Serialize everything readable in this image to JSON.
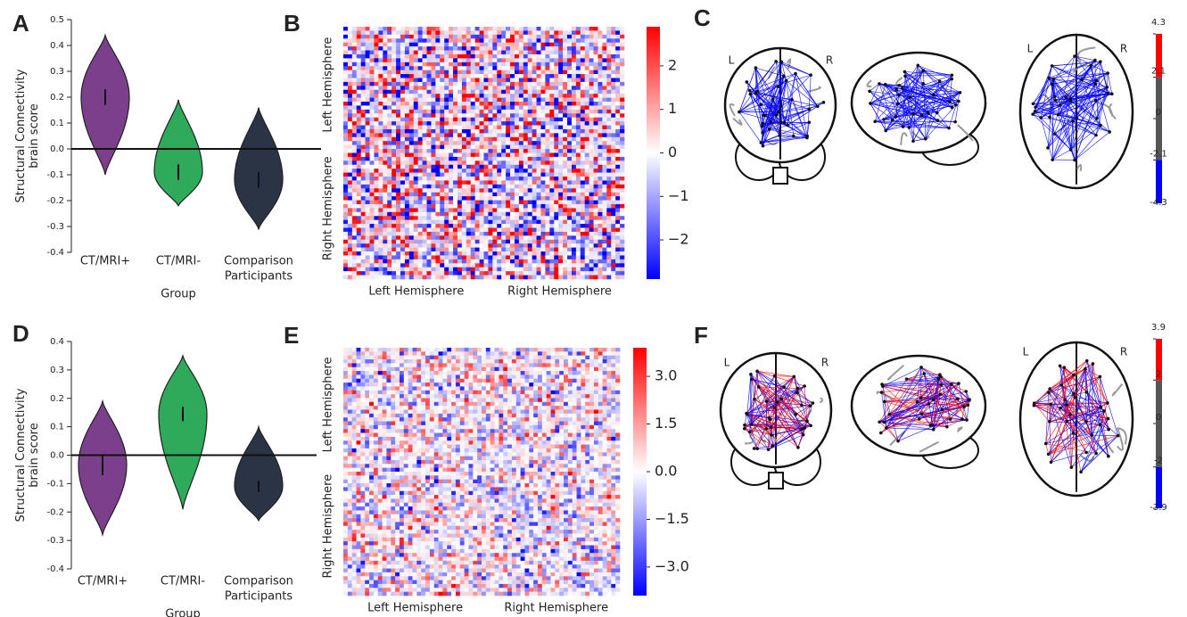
{
  "chart_data": [
    {
      "type": "violin",
      "panel": "A",
      "ylabel": [
        "Structural Connectivity",
        "brain score"
      ],
      "xlabel": "Group",
      "categories": [
        [
          "CT/MRI+"
        ],
        [
          "CT/MRI-"
        ],
        [
          "Comparison",
          "Participants"
        ]
      ],
      "colors": [
        "#7b3f8c",
        "#2eaa5a",
        "#2b3444"
      ],
      "max": [
        0.44,
        0.19,
        0.16
      ],
      "min": [
        -0.1,
        -0.22,
        -0.31
      ],
      "q3": [
        0.23,
        -0.06,
        -0.09
      ],
      "q1": [
        0.17,
        -0.12,
        -0.15
      ],
      "ylim": [
        -0.4,
        0.5
      ],
      "yticks": [
        0.5,
        0.4,
        0.3,
        0.2,
        0.1,
        {
          "value": 0,
          "label": "0.0"
        },
        -0.1,
        -0.2,
        -0.3,
        -0.4
      ]
    },
    {
      "type": "heatmap",
      "panel": "B",
      "xlabels": [
        "Left Hemisphere",
        "Right Hemisphere"
      ],
      "ylabels": [
        "Left Hemisphere",
        "Right Hemisphere"
      ],
      "colors": [
        "#0000ff",
        "#ffffff",
        "#ff0000"
      ],
      "ylim": [
        -2.9,
        2.9
      ],
      "yticks": [
        2,
        1,
        0,
        {
          "value": -1,
          "label": "−1"
        },
        {
          "value": -2,
          "label": "−2"
        }
      ]
    },
    {
      "type": "connectome",
      "panel": "C",
      "hemisphere_labels": [
        "L",
        "R"
      ],
      "colors": [
        "#0000ff",
        "#555555",
        "#ff0000"
      ],
      "ylim": [
        -4.3,
        4.3
      ],
      "yticks": [
        -4.3,
        -2.1,
        0,
        2.1,
        4.3
      ]
    },
    {
      "type": "violin",
      "panel": "D",
      "ylabel": [
        "Structural Connectivity",
        "brain score"
      ],
      "xlabel": "Group",
      "categories": [
        [
          "CT/MRI+"
        ],
        [
          "CT/MRI-"
        ],
        [
          "Comparison",
          "Participants"
        ]
      ],
      "colors": [
        "#7b3f8c",
        "#2eaa5a",
        "#2b3444"
      ],
      "max": [
        0.19,
        0.35,
        0.1
      ],
      "min": [
        -0.28,
        -0.19,
        -0.23
      ],
      "q3": [
        0.0,
        0.17,
        -0.09
      ],
      "q1": [
        -0.07,
        0.12,
        -0.13
      ],
      "ylim": [
        -0.4,
        0.4
      ],
      "yticks": [
        0.4,
        0.3,
        0.2,
        0.1,
        {
          "value": 0,
          "label": "0.0"
        },
        -0.1,
        -0.2,
        -0.3,
        -0.4
      ]
    },
    {
      "type": "heatmap",
      "panel": "E",
      "xlabels": [
        "Left Hemisphere",
        "Right Hemisphere"
      ],
      "ylabels": [
        "Left Hemisphere",
        "Right Hemisphere"
      ],
      "colors": [
        "#0000ff",
        "#ffffff",
        "#ff0000"
      ],
      "ylim": [
        -3.9,
        3.9
      ],
      "yticks": [
        {
          "value": 3,
          "label": "3.0"
        },
        1.5,
        {
          "value": 0,
          "label": "0.0"
        },
        {
          "value": -1.5,
          "label": "−1.5"
        },
        {
          "value": -3,
          "label": "−3.0"
        }
      ]
    },
    {
      "type": "connectome",
      "panel": "F",
      "hemisphere_labels": [
        "L",
        "R"
      ],
      "colors": [
        "#0000ff",
        "#555555",
        "#ff0000"
      ],
      "ylim": [
        -3.9,
        3.9
      ],
      "yticks": [
        -3.9,
        -2,
        0,
        2,
        3.9
      ]
    }
  ]
}
